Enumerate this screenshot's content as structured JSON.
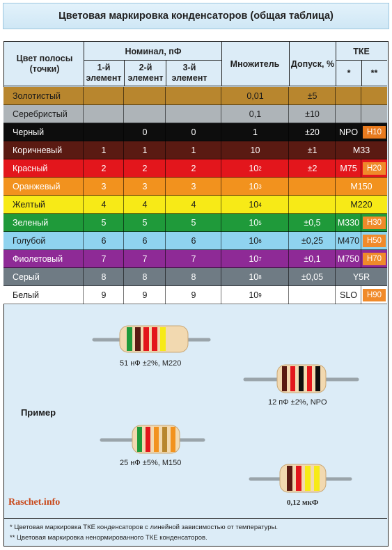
{
  "title": "Цветовая маркировка конденсаторов (общая таблица)",
  "header": {
    "color_col": "Цвет полосы (точки)",
    "nominal": "Номинал, пФ",
    "first": "1-й элемент",
    "second": "2-й элемент",
    "third": "3-й элемент",
    "multiplier": "Множитель",
    "tolerance": "Допуск, %",
    "tke": "ТКЕ",
    "tke_star1": "*",
    "tke_star2": "**"
  },
  "rows": [
    {
      "name": "Золотистый",
      "bg": "#b8862e",
      "fg": "#1a1a1a",
      "d1": "",
      "d2": "",
      "d3": "",
      "mul": "0,01",
      "exp": "",
      "tol": "±5",
      "t1": "",
      "t2": "",
      "t2bg": ""
    },
    {
      "name": "Серебристый",
      "bg": "#aeb4b8",
      "fg": "#1a1a1a",
      "d1": "",
      "d2": "",
      "d3": "",
      "mul": "0,1",
      "exp": "",
      "tol": "±10",
      "t1": "",
      "t2": "",
      "t2bg": ""
    },
    {
      "name": "Черный",
      "bg": "#0d0d0d",
      "fg": "#ffffff",
      "d1": "",
      "d2": "0",
      "d3": "0",
      "mul": "1",
      "exp": "",
      "tol": "±20",
      "t1": "NPO",
      "t2": "H10",
      "t2bg": "#e87a1e"
    },
    {
      "name": "Коричневый",
      "bg": "#5a1a12",
      "fg": "#ffffff",
      "d1": "1",
      "d2": "1",
      "d3": "1",
      "mul": "10",
      "exp": "",
      "tol": "±1",
      "t1": "M33",
      "t2": "",
      "t2bg": ""
    },
    {
      "name": "Красный",
      "bg": "#e3161c",
      "fg": "#ffffff",
      "d1": "2",
      "d2": "2",
      "d3": "2",
      "mul": "10",
      "exp": "2",
      "tol": "±2",
      "t1": "M75",
      "t2": "H20",
      "t2bg": "#f08a2a"
    },
    {
      "name": "Оранжевый",
      "bg": "#f2921e",
      "fg": "#ffffff",
      "d1": "3",
      "d2": "3",
      "d3": "3",
      "mul": "10",
      "exp": "3",
      "tol": "",
      "t1": "M150",
      "t2": "",
      "t2bg": ""
    },
    {
      "name": "Желтый",
      "bg": "#f7ea17",
      "fg": "#1a1a1a",
      "d1": "4",
      "d2": "4",
      "d3": "4",
      "mul": "10",
      "exp": "4",
      "tol": "",
      "t1": "M220",
      "t2": "",
      "t2bg": ""
    },
    {
      "name": "Зеленый",
      "bg": "#1f9a3a",
      "fg": "#ffffff",
      "d1": "5",
      "d2": "5",
      "d3": "5",
      "mul": "10",
      "exp": "5",
      "tol": "±0,5",
      "t1": "M330",
      "t2": "H30",
      "t2bg": "#f08a2a"
    },
    {
      "name": "Голубой",
      "bg": "#8fd3ef",
      "fg": "#1a1a1a",
      "d1": "6",
      "d2": "6",
      "d3": "6",
      "mul": "10",
      "exp": "6",
      "tol": "±0,25",
      "t1": "M470",
      "t2": "H50",
      "t2bg": "#f08a2a"
    },
    {
      "name": "Фиолетовый",
      "bg": "#8e2a96",
      "fg": "#ffffff",
      "d1": "7",
      "d2": "7",
      "d3": "7",
      "mul": "10",
      "exp": "7",
      "tol": "±0,1",
      "t1": "M750",
      "t2": "H70",
      "t2bg": "#f08a2a"
    },
    {
      "name": "Серый",
      "bg": "#6f7b84",
      "fg": "#ffffff",
      "d1": "8",
      "d2": "8",
      "d3": "8",
      "mul": "10",
      "exp": "8",
      "tol": "±0,05",
      "t1": "Y5R",
      "t2": "",
      "t2bg": ""
    },
    {
      "name": "Белый",
      "bg": "#ffffff",
      "fg": "#1a1a1a",
      "d1": "9",
      "d2": "9",
      "d3": "9",
      "mul": "10",
      "exp": "9",
      "tol": "",
      "t1": "SLO",
      "t2": "H90",
      "t2bg": "#f08a2a"
    }
  ],
  "example": {
    "label": "Пример",
    "captions": [
      "51 нФ ±2%, M220",
      "12 пФ ±2%, NPO",
      "25 нФ ±5%, M150",
      "0,12 мкФ"
    ],
    "band_colors": [
      [
        "#1f9a3a",
        "#5a1a12",
        "#e3161c",
        "#e3161c",
        "#f7ea17"
      ],
      [
        "#5a1a12",
        "#e3161c",
        "#0d0d0d",
        "#e3161c",
        "#0d0d0d"
      ],
      [
        "#1f9a3a",
        "#e3161c",
        "#f2921e",
        "#b8862e",
        "#f2921e"
      ],
      [
        "#5a1a12",
        "#e3161c",
        "#f7ea17",
        "#f7ea17"
      ]
    ]
  },
  "watermark": "Raschet.info",
  "footnotes": [
    "*  Цветовая маркировка ТКЕ конденсаторов с линейной зависимостью от температуры.",
    "** Цветовая маркировка ненормированного ТКЕ конденсаторов."
  ]
}
